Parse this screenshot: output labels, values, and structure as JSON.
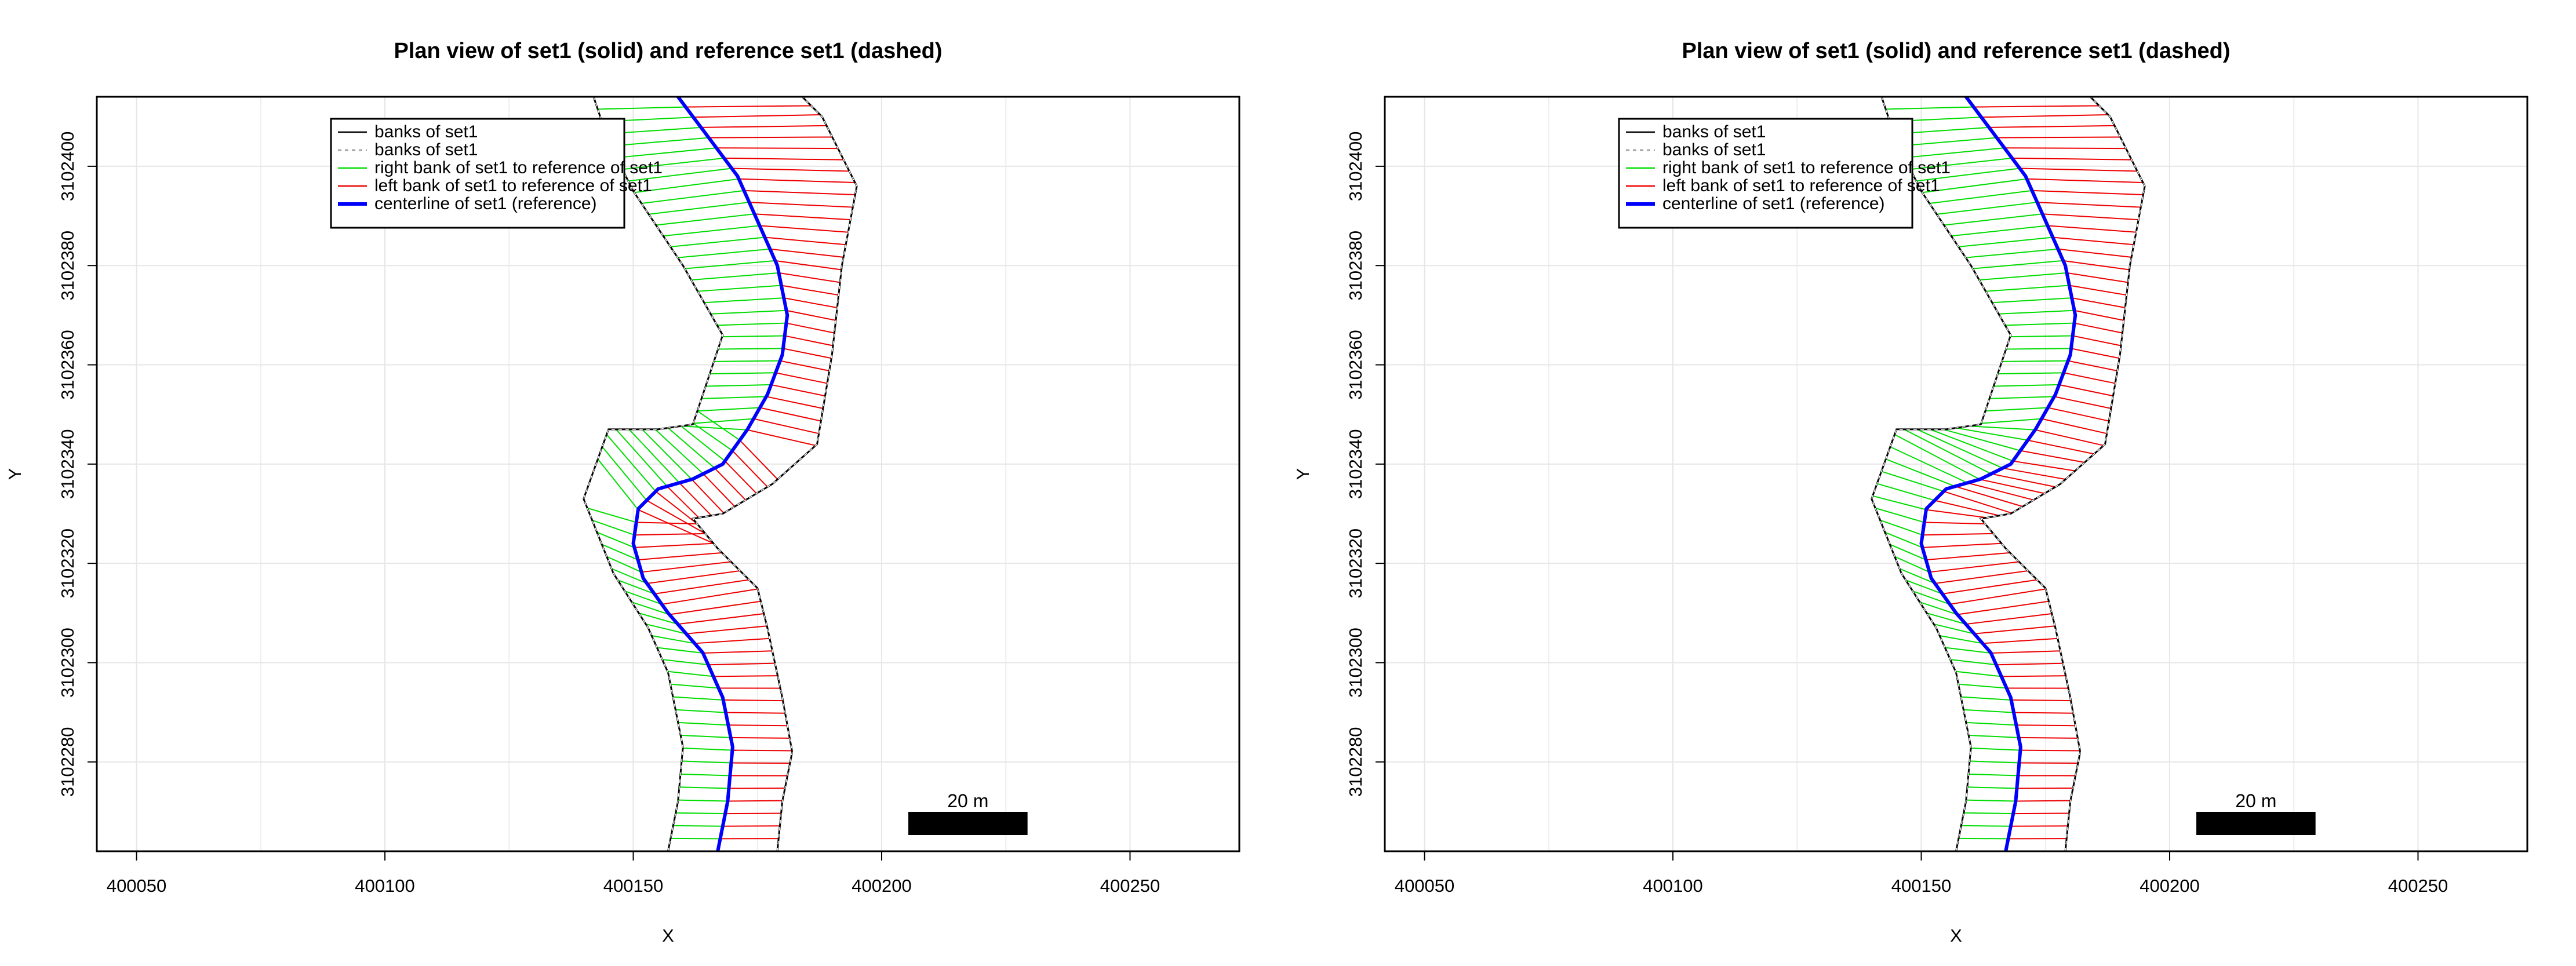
{
  "chart_data": [
    {
      "type": "line",
      "title": "Plan view of set1 (solid) and reference  set1 (dashed)",
      "xlabel": "X",
      "ylabel": "Y",
      "xlim": [
        400042,
        400272
      ],
      "ylim": [
        3102262,
        3102414
      ],
      "x_ticks": [
        "400050",
        "400100",
        "400150",
        "400200",
        "400250"
      ],
      "y_ticks": [
        "3102280",
        "3102300",
        "3102320",
        "3102340",
        "3102360",
        "3102380",
        "3102400"
      ],
      "grid": true,
      "legend_position": "top-left",
      "legend": [
        {
          "label": "banks of set1",
          "color": "#000000",
          "style": "solid"
        },
        {
          "label": "banks of set1",
          "color": "#999999",
          "style": "dashed"
        },
        {
          "label": "right bank of set1 to reference of set1",
          "color": "#00dd00",
          "style": "solid"
        },
        {
          "label": "left bank of set1 to reference of set1",
          "color": "#ee0000",
          "style": "solid"
        },
        {
          "label": "centerline of set1 (reference)",
          "color": "#0000ff",
          "style": "thick"
        }
      ],
      "scale_bar": {
        "label": "20 m",
        "length": 24
      },
      "series": [
        {
          "role": "centerline",
          "points": [
            [
              400167,
              3102262
            ],
            [
              400169,
              3102272
            ],
            [
              400170,
              3102283
            ],
            [
              400168,
              3102293
            ],
            [
              400164,
              3102302
            ],
            [
              400157,
              3102310
            ],
            [
              400152,
              3102317
            ],
            [
              400150,
              3102324
            ],
            [
              400151,
              3102331
            ],
            [
              400155,
              3102335
            ],
            [
              400162,
              3102337
            ],
            [
              400168,
              3102340
            ],
            [
              400173,
              3102347
            ],
            [
              400177,
              3102354
            ],
            [
              400180,
              3102362
            ],
            [
              400181,
              3102370
            ],
            [
              400179,
              3102380
            ],
            [
              400175,
              3102389
            ],
            [
              400171,
              3102398
            ],
            [
              400165,
              3102406
            ],
            [
              400159,
              3102414
            ]
          ]
        },
        {
          "role": "right-bank",
          "points": [
            [
              400157,
              3102262
            ],
            [
              400159,
              3102272
            ],
            [
              400160,
              3102283
            ],
            [
              400158,
              3102293
            ],
            [
              400157,
              3102298
            ],
            [
              400153,
              3102307
            ],
            [
              400146,
              3102318
            ],
            [
              400140,
              3102333
            ],
            [
              400145,
              3102347
            ],
            [
              400155,
              3102347
            ],
            [
              400162,
              3102348
            ],
            [
              400168,
              3102366
            ],
            [
              400160,
              3102380
            ],
            [
              400150,
              3102395
            ],
            [
              400145,
              3102405
            ],
            [
              400142,
              3102414
            ]
          ]
        },
        {
          "role": "left-bank",
          "points": [
            [
              400179,
              3102262
            ],
            [
              400180,
              3102272
            ],
            [
              400182,
              3102282
            ],
            [
              400180,
              3102293
            ],
            [
              400177,
              3102307
            ],
            [
              400175,
              3102315
            ],
            [
              400167,
              3102323
            ],
            [
              400162,
              3102329
            ],
            [
              400168,
              3102330
            ],
            [
              400178,
              3102336
            ],
            [
              400187,
              3102344
            ],
            [
              400190,
              3102362
            ],
            [
              400192,
              3102380
            ],
            [
              400195,
              3102396
            ],
            [
              400188,
              3102410
            ],
            [
              400184,
              3102414
            ]
          ]
        }
      ]
    },
    {
      "type": "line",
      "title": "Plan view of set1 (solid) and reference  set1 (dashed)",
      "xlabel": "X",
      "ylabel": "Y",
      "xlim": [
        400042,
        400272
      ],
      "ylim": [
        3102262,
        3102414
      ],
      "x_ticks": [
        "400050",
        "400100",
        "400150",
        "400200",
        "400250"
      ],
      "y_ticks": [
        "3102280",
        "3102300",
        "3102320",
        "3102340",
        "3102360",
        "3102380",
        "3102400"
      ],
      "grid": true,
      "legend_position": "top-left",
      "legend": [
        {
          "label": "banks of set1",
          "color": "#000000",
          "style": "solid"
        },
        {
          "label": "banks of set1",
          "color": "#999999",
          "style": "dashed"
        },
        {
          "label": "right bank of set1 to reference of set1",
          "color": "#00dd00",
          "style": "solid"
        },
        {
          "label": "left bank of set1 to reference of set1",
          "color": "#ee0000",
          "style": "solid"
        },
        {
          "label": "centerline of set1 (reference)",
          "color": "#0000ff",
          "style": "thick"
        }
      ],
      "scale_bar": {
        "label": "20 m",
        "length": 24
      },
      "series": [
        {
          "role": "centerline",
          "points": [
            [
              400167,
              3102262
            ],
            [
              400169,
              3102272
            ],
            [
              400170,
              3102283
            ],
            [
              400168,
              3102293
            ],
            [
              400164,
              3102302
            ],
            [
              400157,
              3102310
            ],
            [
              400152,
              3102317
            ],
            [
              400150,
              3102324
            ],
            [
              400151,
              3102331
            ],
            [
              400155,
              3102335
            ],
            [
              400162,
              3102337
            ],
            [
              400168,
              3102340
            ],
            [
              400173,
              3102347
            ],
            [
              400177,
              3102354
            ],
            [
              400180,
              3102362
            ],
            [
              400181,
              3102370
            ],
            [
              400179,
              3102380
            ],
            [
              400175,
              3102389
            ],
            [
              400171,
              3102398
            ],
            [
              400165,
              3102406
            ],
            [
              400159,
              3102414
            ]
          ]
        },
        {
          "role": "right-bank",
          "points": [
            [
              400157,
              3102262
            ],
            [
              400159,
              3102272
            ],
            [
              400160,
              3102283
            ],
            [
              400158,
              3102293
            ],
            [
              400157,
              3102298
            ],
            [
              400153,
              3102307
            ],
            [
              400146,
              3102318
            ],
            [
              400140,
              3102333
            ],
            [
              400145,
              3102347
            ],
            [
              400155,
              3102347
            ],
            [
              400162,
              3102348
            ],
            [
              400168,
              3102366
            ],
            [
              400160,
              3102380
            ],
            [
              400150,
              3102395
            ],
            [
              400145,
              3102405
            ],
            [
              400142,
              3102414
            ]
          ]
        },
        {
          "role": "left-bank",
          "points": [
            [
              400179,
              3102262
            ],
            [
              400180,
              3102272
            ],
            [
              400182,
              3102282
            ],
            [
              400180,
              3102293
            ],
            [
              400177,
              3102307
            ],
            [
              400175,
              3102315
            ],
            [
              400167,
              3102323
            ],
            [
              400162,
              3102329
            ],
            [
              400168,
              3102330
            ],
            [
              400178,
              3102336
            ],
            [
              400187,
              3102344
            ],
            [
              400190,
              3102362
            ],
            [
              400192,
              3102380
            ],
            [
              400195,
              3102396
            ],
            [
              400188,
              3102410
            ],
            [
              400184,
              3102414
            ]
          ]
        }
      ]
    }
  ]
}
